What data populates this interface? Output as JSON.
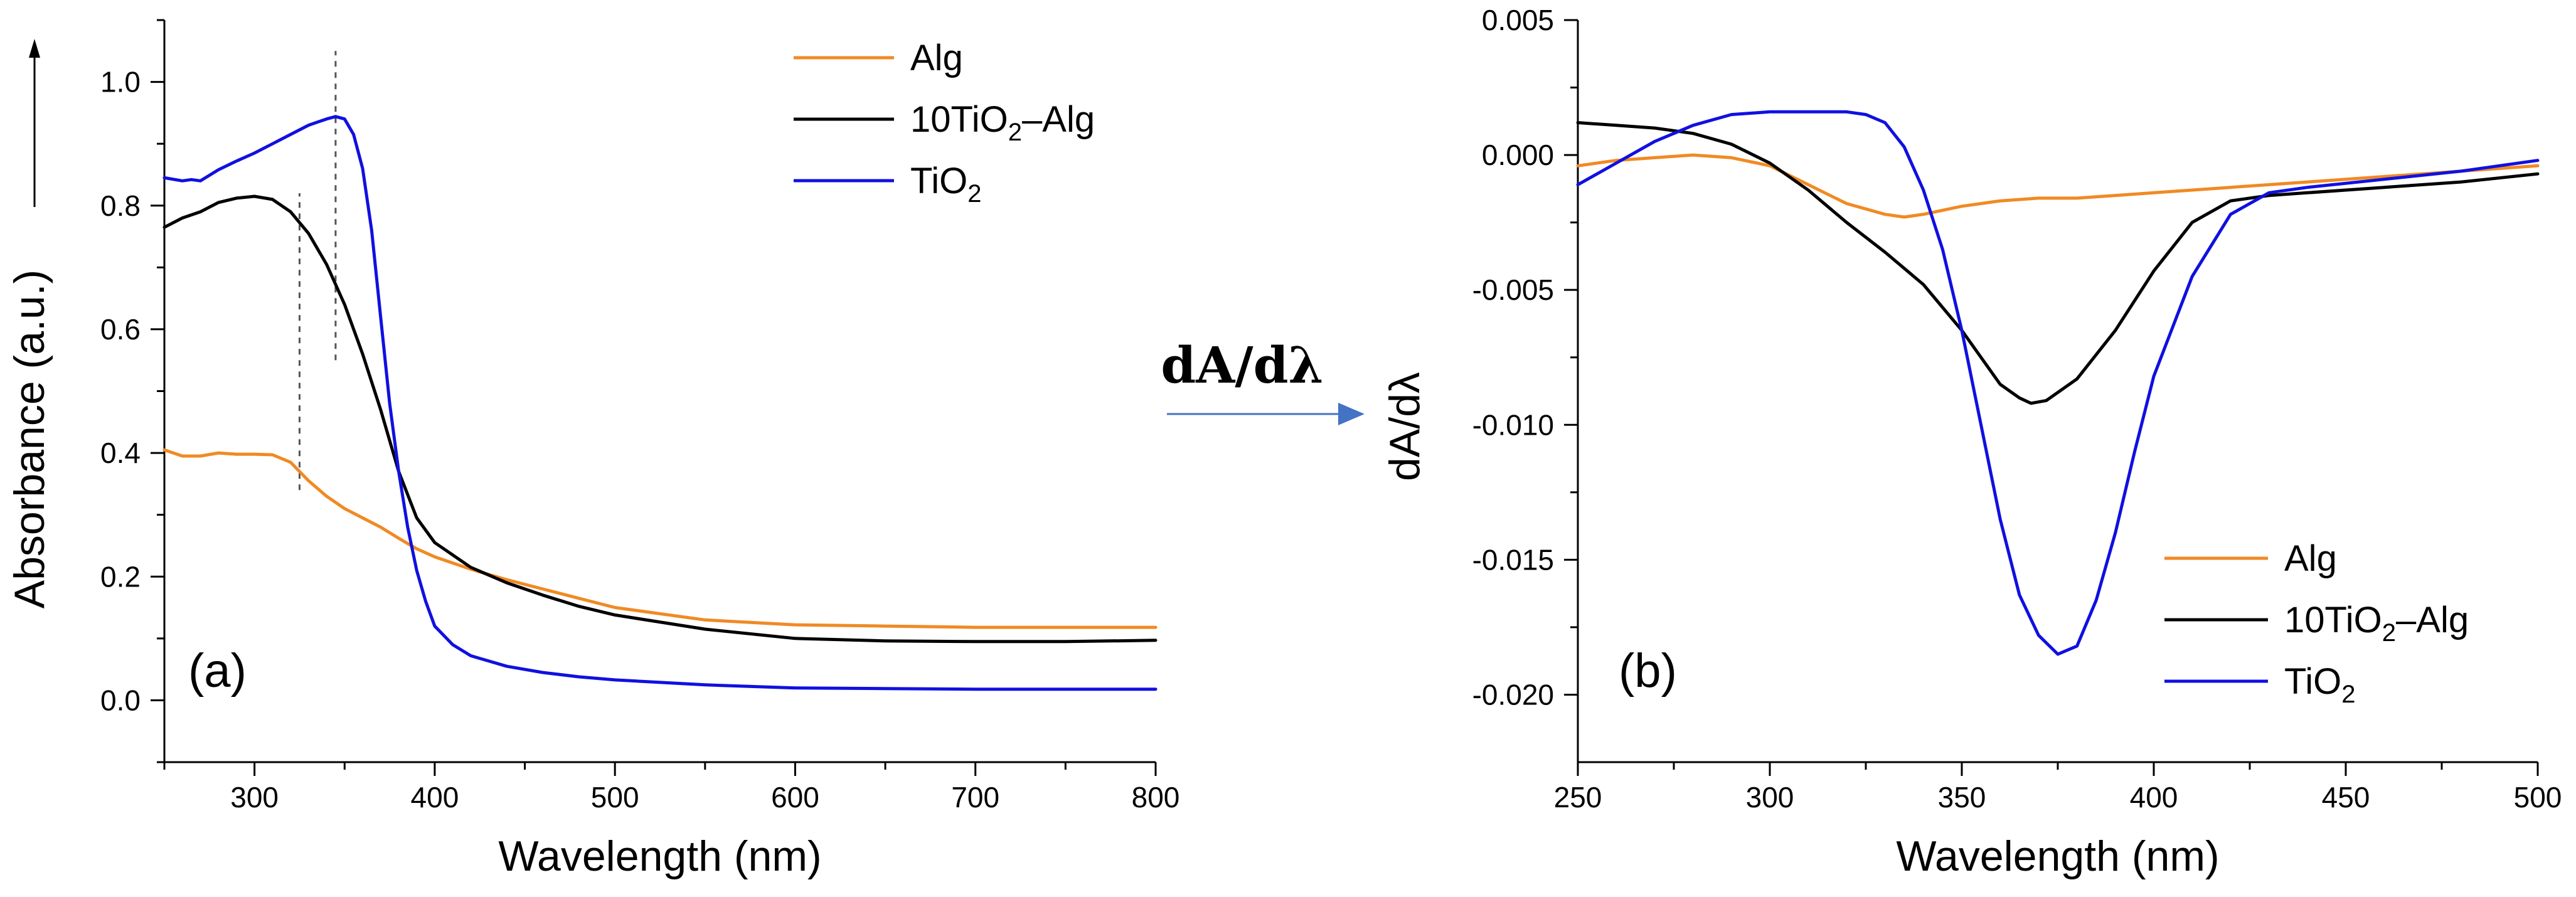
{
  "arrow": {
    "label": "dA/dλ",
    "color": "#4472c4"
  },
  "chart_data": [
    {
      "id": "a",
      "type": "line",
      "panel_label": "(a)",
      "xlabel": "Wavelength (nm)",
      "ylabel": "Absorbance (a.u.)",
      "xlim": [
        250,
        800
      ],
      "ylim": [
        -0.1,
        1.1
      ],
      "xticks": [
        300,
        400,
        500,
        600,
        700,
        800
      ],
      "yticks": [
        0.0,
        0.2,
        0.4,
        0.6,
        0.8,
        1.0
      ],
      "xtick_labels": [
        "300",
        "400",
        "500",
        "600",
        "700",
        "800"
      ],
      "ytick_labels": [
        "0.0",
        "0.2",
        "0.4",
        "0.6",
        "0.8",
        "1.0"
      ],
      "legend_position": "top-right",
      "annotations": {
        "dashed_markers_nm": [
          325,
          345
        ]
      },
      "series": [
        {
          "name": "Alg",
          "legend_main": "Alg",
          "legend_sub": "",
          "legend_tail": "",
          "color": "#f08a24",
          "x": [
            250,
            260,
            270,
            280,
            290,
            300,
            310,
            320,
            325,
            330,
            340,
            350,
            360,
            370,
            380,
            390,
            400,
            420,
            440,
            460,
            480,
            500,
            550,
            600,
            650,
            700,
            750,
            800
          ],
          "y": [
            0.405,
            0.395,
            0.395,
            0.4,
            0.398,
            0.398,
            0.397,
            0.385,
            0.37,
            0.355,
            0.33,
            0.31,
            0.295,
            0.28,
            0.262,
            0.245,
            0.232,
            0.212,
            0.195,
            0.18,
            0.165,
            0.15,
            0.13,
            0.122,
            0.12,
            0.118,
            0.118,
            0.118
          ]
        },
        {
          "name": "10TiO2-Alg",
          "legend_main": "10TiO",
          "legend_sub": "2",
          "legend_tail": "–Alg",
          "color": "#000000",
          "x": [
            250,
            260,
            270,
            280,
            290,
            300,
            310,
            320,
            330,
            340,
            350,
            360,
            370,
            380,
            390,
            400,
            420,
            440,
            460,
            480,
            500,
            550,
            600,
            650,
            700,
            750,
            800
          ],
          "y": [
            0.765,
            0.78,
            0.79,
            0.805,
            0.812,
            0.815,
            0.81,
            0.79,
            0.755,
            0.705,
            0.64,
            0.56,
            0.47,
            0.37,
            0.295,
            0.255,
            0.215,
            0.19,
            0.17,
            0.152,
            0.138,
            0.115,
            0.1,
            0.096,
            0.095,
            0.095,
            0.097
          ]
        },
        {
          "name": "TiO2",
          "legend_main": "TiO",
          "legend_sub": "2",
          "legend_tail": "",
          "color": "#1010e0",
          "x": [
            250,
            260,
            265,
            270,
            280,
            290,
            300,
            310,
            320,
            330,
            340,
            345,
            350,
            355,
            360,
            365,
            370,
            375,
            380,
            385,
            390,
            395,
            400,
            410,
            420,
            440,
            460,
            480,
            500,
            550,
            600,
            650,
            700,
            750,
            800
          ],
          "y": [
            0.845,
            0.84,
            0.842,
            0.84,
            0.858,
            0.872,
            0.885,
            0.9,
            0.915,
            0.93,
            0.94,
            0.944,
            0.94,
            0.915,
            0.86,
            0.76,
            0.62,
            0.48,
            0.37,
            0.28,
            0.21,
            0.16,
            0.12,
            0.09,
            0.072,
            0.055,
            0.045,
            0.038,
            0.033,
            0.025,
            0.02,
            0.019,
            0.018,
            0.018,
            0.018
          ]
        }
      ]
    },
    {
      "id": "b",
      "type": "line",
      "panel_label": "(b)",
      "xlabel": "Wavelength (nm)",
      "ylabel": "dA/dλ",
      "xlim": [
        250,
        500
      ],
      "ylim": [
        -0.0225,
        0.005
      ],
      "xticks": [
        250,
        300,
        350,
        400,
        450,
        500
      ],
      "yticks": [
        0.005,
        0.0,
        -0.005,
        -0.01,
        -0.015,
        -0.02
      ],
      "xtick_labels": [
        "250",
        "300",
        "350",
        "400",
        "450",
        "500"
      ],
      "ytick_labels": [
        "0.005",
        "0.000",
        "-0.005",
        "-0.010",
        "-0.015",
        "-0.020"
      ],
      "legend_position": "bottom-right",
      "series": [
        {
          "name": "Alg",
          "legend_main": "Alg",
          "legend_sub": "",
          "legend_tail": "",
          "color": "#f08a24",
          "x": [
            250,
            260,
            270,
            280,
            290,
            300,
            310,
            320,
            330,
            335,
            340,
            350,
            360,
            370,
            380,
            390,
            400,
            420,
            440,
            460,
            480,
            500
          ],
          "y": [
            -0.0004,
            -0.0002,
            -0.0001,
            0.0,
            -0.0001,
            -0.0004,
            -0.0011,
            -0.0018,
            -0.0022,
            -0.0023,
            -0.0022,
            -0.0019,
            -0.0017,
            -0.0016,
            -0.0016,
            -0.0015,
            -0.0014,
            -0.0012,
            -0.001,
            -0.0008,
            -0.0006,
            -0.0004
          ]
        },
        {
          "name": "10TiO2-Alg",
          "legend_main": "10TiO",
          "legend_sub": "2",
          "legend_tail": "–Alg",
          "color": "#000000",
          "x": [
            250,
            260,
            270,
            280,
            290,
            300,
            310,
            320,
            330,
            340,
            350,
            355,
            360,
            365,
            368,
            372,
            380,
            390,
            400,
            410,
            420,
            430,
            440,
            460,
            480,
            500
          ],
          "y": [
            0.0012,
            0.0011,
            0.001,
            0.0008,
            0.0004,
            -0.0003,
            -0.0013,
            -0.0025,
            -0.0036,
            -0.0048,
            -0.0065,
            -0.0075,
            -0.0085,
            -0.009,
            -0.0092,
            -0.0091,
            -0.0083,
            -0.0065,
            -0.0043,
            -0.0025,
            -0.0017,
            -0.0015,
            -0.0014,
            -0.0012,
            -0.001,
            -0.0007
          ]
        },
        {
          "name": "TiO2",
          "legend_main": "TiO",
          "legend_sub": "2",
          "legend_tail": "",
          "color": "#1010e0",
          "x": [
            250,
            260,
            270,
            280,
            290,
            300,
            310,
            320,
            325,
            330,
            335,
            340,
            345,
            350,
            355,
            360,
            365,
            370,
            375,
            380,
            385,
            390,
            395,
            400,
            410,
            420,
            430,
            440,
            460,
            480,
            500
          ],
          "y": [
            -0.0011,
            -0.0003,
            0.0005,
            0.0011,
            0.0015,
            0.0016,
            0.0016,
            0.0016,
            0.0015,
            0.0012,
            0.0003,
            -0.0013,
            -0.0035,
            -0.0065,
            -0.01,
            -0.0135,
            -0.0163,
            -0.0178,
            -0.0185,
            -0.0182,
            -0.0165,
            -0.014,
            -0.011,
            -0.0082,
            -0.0045,
            -0.0022,
            -0.0014,
            -0.0012,
            -0.0009,
            -0.0006,
            -0.0002
          ]
        }
      ]
    }
  ]
}
